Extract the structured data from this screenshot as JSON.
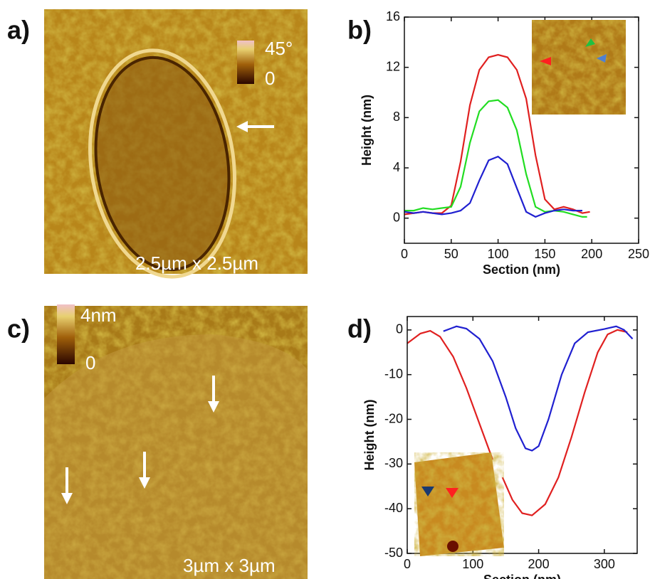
{
  "chart_data": [
    {
      "type": "image",
      "label": "a)",
      "colorbar_labels": [
        "45°",
        "0"
      ],
      "scale": "2.5µm x 2.5µm"
    },
    {
      "type": "line",
      "label": "b)",
      "xlabel": "Section (nm)",
      "ylabel": "Height (nm)",
      "xlim": [
        0,
        250
      ],
      "xticks": [
        0,
        50,
        100,
        150,
        200,
        250
      ],
      "ylim": [
        -2,
        16
      ],
      "yticks": [
        0,
        4,
        8,
        12,
        16
      ],
      "series": [
        {
          "color": "#e02020",
          "x": [
            0,
            10,
            20,
            30,
            40,
            50,
            60,
            70,
            80,
            90,
            100,
            110,
            120,
            130,
            140,
            150,
            160,
            170,
            180,
            190,
            198
          ],
          "values": [
            0.3,
            0.4,
            0.5,
            0.4,
            0.4,
            1.0,
            4.5,
            9,
            11.8,
            12.8,
            13,
            12.8,
            11.8,
            9.5,
            5,
            1.5,
            0.7,
            0.9,
            0.7,
            0.4,
            0.5
          ]
        },
        {
          "color": "#22dd22",
          "x": [
            0,
            10,
            20,
            30,
            40,
            50,
            60,
            70,
            80,
            90,
            100,
            110,
            120,
            130,
            140,
            150,
            160,
            170,
            180,
            190,
            195
          ],
          "values": [
            0.6,
            0.6,
            0.8,
            0.7,
            0.8,
            0.9,
            2.5,
            6,
            8.5,
            9.3,
            9.4,
            8.8,
            7,
            3.5,
            0.9,
            0.5,
            0.6,
            0.5,
            0.3,
            0.1,
            0.1
          ]
        },
        {
          "color": "#2020d0",
          "x": [
            0,
            10,
            20,
            30,
            40,
            50,
            60,
            70,
            80,
            90,
            100,
            110,
            120,
            130,
            140,
            150,
            160,
            170,
            180,
            190
          ],
          "values": [
            0.5,
            0.4,
            0.5,
            0.4,
            0.3,
            0.4,
            0.6,
            1.2,
            3,
            4.6,
            4.9,
            4.3,
            2.4,
            0.5,
            0.1,
            0.4,
            0.6,
            0.7,
            0.6,
            0.6
          ]
        }
      ]
    },
    {
      "type": "image",
      "label": "c)",
      "colorbar_labels": [
        "4nm",
        "0"
      ],
      "scale": "3µm x 3µm"
    },
    {
      "type": "line",
      "label": "d)",
      "xlabel": "Section (nm)",
      "ylabel": "Height (nm)",
      "xlim": [
        0,
        350
      ],
      "xticks": [
        0,
        100,
        200,
        300
      ],
      "ylim": [
        -50,
        3
      ],
      "yticks": [
        0,
        -10,
        -20,
        -30,
        -40,
        -50
      ],
      "series": [
        {
          "color": "#e02020",
          "x": [
            0,
            20,
            35,
            50,
            70,
            90,
            110,
            130,
            138,
            145,
            160,
            175,
            190,
            210,
            230,
            250,
            270,
            290,
            305,
            320,
            335
          ],
          "values": [
            -3,
            -0.8,
            -0.2,
            -1.5,
            -6,
            -13,
            -21,
            -29,
            null,
            -33,
            -38,
            -41,
            -41.5,
            -39,
            -33,
            -24,
            -14,
            -5,
            -1,
            0,
            -0.5
          ]
        },
        {
          "color": "#2020d0",
          "x": [
            55,
            75,
            90,
            110,
            130,
            150,
            165,
            180,
            190,
            200,
            215,
            235,
            255,
            275,
            300,
            318,
            330,
            343
          ],
          "values": [
            -0.3,
            0.8,
            0.3,
            -2,
            -7,
            -15,
            -22,
            -26.5,
            -27,
            -26,
            -20,
            -10,
            -3,
            -0.5,
            0.2,
            0.8,
            0,
            -2
          ]
        }
      ]
    }
  ]
}
